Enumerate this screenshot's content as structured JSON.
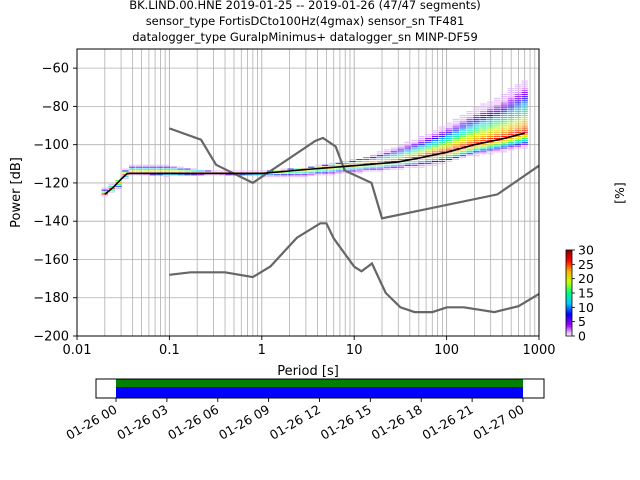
{
  "title": {
    "line1": "BK.LIND.00.HNE   2019-01-25 -- 2019-01-26  (47/47 segments)",
    "line2": "sensor_type FortisDCto100Hz(4gmax) sensor_sn TF481",
    "line3": "datalogger_type GuralpMinimus+ datalogger_sn MINP-DF59"
  },
  "chart_data": [
    {
      "type": "heatmap",
      "xlabel": "Period [s]",
      "ylabel": "Power [dB]",
      "x_scale": "log",
      "xlim": [
        0.01,
        1000
      ],
      "ylim": [
        -200,
        -50
      ],
      "x_ticks": [
        0.01,
        0.1,
        1,
        10,
        100,
        1000
      ],
      "x_tick_labels": [
        "0.01",
        "0.1",
        "1",
        "10",
        "100",
        "1000"
      ],
      "y_ticks": [
        -200,
        -180,
        -160,
        -140,
        -120,
        -100,
        -80,
        -60
      ],
      "y_tick_labels": [
        "−200",
        "−180",
        "−160",
        "−140",
        "−120",
        "−100",
        "−80",
        "−60"
      ],
      "grid": true,
      "noise_models": {
        "high": {
          "x": [
            0.1,
            0.22,
            0.32,
            0.8,
            3.8,
            4.6,
            6.3,
            7.9,
            15.4,
            20,
            354.8,
            1000
          ],
          "y": [
            -91.5,
            -97.4,
            -110.5,
            -120,
            -98,
            -96.5,
            -101,
            -113.5,
            -120,
            -138.5,
            -126,
            -111
          ]
        },
        "low": {
          "x": [
            0.1,
            0.17,
            0.4,
            0.8,
            1.24,
            2.4,
            4.3,
            5,
            6,
            10,
            12,
            15.6,
            21.9,
            31.6,
            45,
            70,
            101,
            154,
            328,
            600,
            1000
          ],
          "y": [
            -168,
            -166.7,
            -166.7,
            -169.2,
            -163.7,
            -148.6,
            -141.1,
            -141.1,
            -149,
            -163.8,
            -166.2,
            -162.1,
            -177.5,
            -185,
            -187.5,
            -187.5,
            -185,
            -185,
            -187.5,
            -184.4,
            -178
          ]
        }
      },
      "mode": {
        "x": [
          0.02,
          0.025,
          0.03,
          0.035,
          0.05,
          0.1,
          0.3,
          1,
          3,
          10,
          30,
          50,
          100,
          200,
          400,
          700
        ],
        "y": [
          -126,
          -122,
          -118,
          -115,
          -115,
          -115,
          -115,
          -115,
          -113,
          -111,
          -109,
          -107,
          -104,
          -100,
          -97,
          -94
        ]
      },
      "pdf_spread": {
        "x": [
          0.02,
          0.03,
          0.035,
          0.05,
          0.1,
          0.3,
          1,
          3,
          10,
          20,
          30,
          50,
          100,
          200,
          400,
          700
        ],
        "upper": [
          -123,
          -118,
          -111,
          -111,
          -111,
          -114,
          -114,
          -112,
          -108,
          -104,
          -101,
          -97,
          -90,
          -82,
          -75,
          -67
        ],
        "lower": [
          -127,
          -123,
          -116,
          -116,
          -117,
          -116,
          -117,
          -117,
          -115,
          -114,
          -113,
          -112,
          -110,
          -106,
          -104,
          -102
        ]
      },
      "colorbar": {
        "label": "[%]",
        "min": 0,
        "max": 30,
        "ticks": [
          0,
          5,
          10,
          15,
          20,
          25,
          30
        ],
        "tick_labels": [
          "0",
          "5",
          "10",
          "15",
          "20",
          "25",
          "30"
        ],
        "colors": [
          "#ffffff",
          "#a000ff",
          "#0000ff",
          "#00c8ff",
          "#00ff80",
          "#c8ff00",
          "#ffb000",
          "#ff0000",
          "#800000"
        ]
      }
    },
    {
      "type": "timeline",
      "x_tick_labels": [
        "01-26 00",
        "01-26 03",
        "01-26 06",
        "01-26 09",
        "01-26 12",
        "01-26 15",
        "01-26 18",
        "01-26 21",
        "01-27 00"
      ],
      "coverage_colors": {
        "top": "#008000",
        "bottom": "#0000ff"
      },
      "coverage_start": "01-26 00",
      "coverage_end": "01-27 00"
    }
  ]
}
